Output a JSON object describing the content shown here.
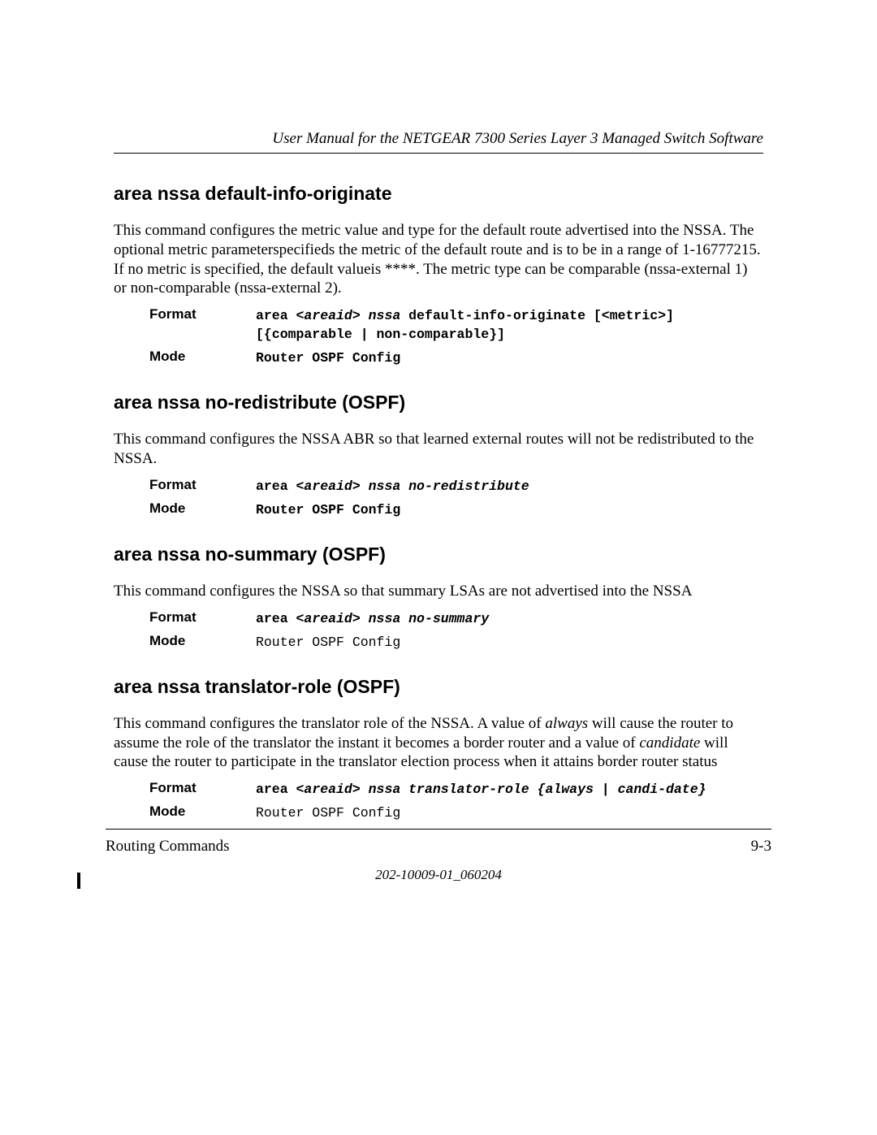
{
  "header": "User Manual for the NETGEAR 7300 Series Layer 3 Managed Switch Software",
  "sections": [
    {
      "title": "area nssa default-info-originate",
      "para": "This command configures the metric value and type for the default route advertised into the NSSA. The optional metric parameterspecifieds the metric of the default route and is to be in a range of 1-16777215. If no metric is specified, the default valueis ****. The metric type can be comparable (nssa-external 1) or non-comparable (nssa-external 2).",
      "format_label": "Format",
      "format_parts": [
        {
          "t": "area ",
          "c": "bold"
        },
        {
          "t": "<areaid>",
          "c": "bi"
        },
        {
          "t": " nssa",
          "c": "bi"
        },
        {
          "t": " default-info-originate [<metric>] [{comparable | non-comparable}]",
          "c": "bold"
        }
      ],
      "mode_label": "Mode",
      "mode_value": "Router OSPF Config",
      "mode_bold": true
    },
    {
      "title": "area nssa no-redistribute (OSPF)",
      "para": "This command configures the NSSA ABR so that learned external routes will not be redistributed to the NSSA.",
      "format_label": "Format",
      "format_parts": [
        {
          "t": "area ",
          "c": "bold"
        },
        {
          "t": "<areaid>",
          "c": "bi"
        },
        {
          "t": " nssa no-redistribute",
          "c": "bi"
        }
      ],
      "mode_label": "Mode",
      "mode_value": "Router OSPF Config",
      "mode_bold": true
    },
    {
      "title": "area nssa no-summary (OSPF)",
      "para": "This command configures the NSSA so that summary LSAs are not advertised into the NSSA",
      "format_label": "Format",
      "format_parts": [
        {
          "t": "area ",
          "c": "bold"
        },
        {
          "t": "<areaid>",
          "c": "bi"
        },
        {
          "t": " nssa no-summary",
          "c": "bi"
        }
      ],
      "mode_label": "Mode",
      "mode_value": "Router OSPF Config",
      "mode_bold": false
    },
    {
      "title": "area nssa translator-role (OSPF)",
      "para_html": "This command configures the translator role of the NSSA. A value of <span class=\"italic\">always</span> will cause the router to assume the role of the translator the instant it becomes a border router and a value of <span class=\"italic\">candidate</span> will cause the router to participate in the translator election process when it attains border router status",
      "format_label": "Format",
      "format_parts": [
        {
          "t": "area ",
          "c": "bold"
        },
        {
          "t": "<areaid>",
          "c": "bi"
        },
        {
          "t": " nssa translator-role {always | candi-date}",
          "c": "bi"
        }
      ],
      "mode_label": "Mode",
      "mode_value": "Router OSPF Config",
      "mode_bold": false
    }
  ],
  "footer": {
    "left": "Routing Commands",
    "right": "9-3",
    "doc": "202-10009-01_060204"
  }
}
